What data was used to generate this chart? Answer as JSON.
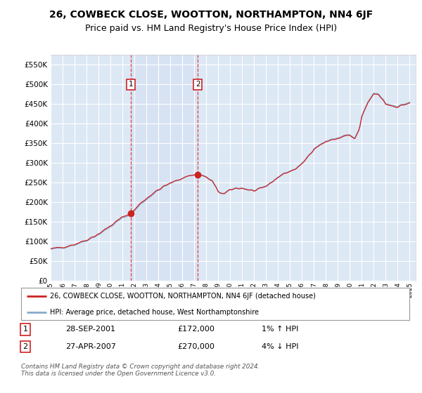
{
  "title": "26, COWBECK CLOSE, WOOTTON, NORTHAMPTON, NN4 6JF",
  "subtitle": "Price paid vs. HM Land Registry's House Price Index (HPI)",
  "ylim": [
    0,
    575000
  ],
  "yticks": [
    0,
    50000,
    100000,
    150000,
    200000,
    250000,
    300000,
    350000,
    400000,
    450000,
    500000,
    550000
  ],
  "ytick_labels": [
    "£0",
    "£50K",
    "£100K",
    "£150K",
    "£200K",
    "£250K",
    "£300K",
    "£350K",
    "£400K",
    "£450K",
    "£500K",
    "£550K"
  ],
  "hpi_color": "#88aacc",
  "price_color": "#cc2222",
  "marker_color": "#cc2222",
  "sale1_year": 2001,
  "sale1_month": 9,
  "sale1_price": 172000,
  "sale2_year": 2007,
  "sale2_month": 4,
  "sale2_price": 270000,
  "legend_line1": "26, COWBECK CLOSE, WOOTTON, NORTHAMPTON, NN4 6JF (detached house)",
  "legend_line2": "HPI: Average price, detached house, West Northamptonshire",
  "table_row1_num": "1",
  "table_row1_date": "28-SEP-2001",
  "table_row1_price": "£172,000",
  "table_row1_hpi": "1% ↑ HPI",
  "table_row2_num": "2",
  "table_row2_date": "27-APR-2007",
  "table_row2_price": "£270,000",
  "table_row2_hpi": "4% ↓ HPI",
  "footer": "Contains HM Land Registry data © Crown copyright and database right 2024.\nThis data is licensed under the Open Government Licence v3.0.",
  "background_color": "#ffffff",
  "plot_bg_color": "#dde8f5",
  "grid_color": "#ffffff",
  "vline_color": "#dd3333",
  "title_fontsize": 10,
  "subtitle_fontsize": 9
}
